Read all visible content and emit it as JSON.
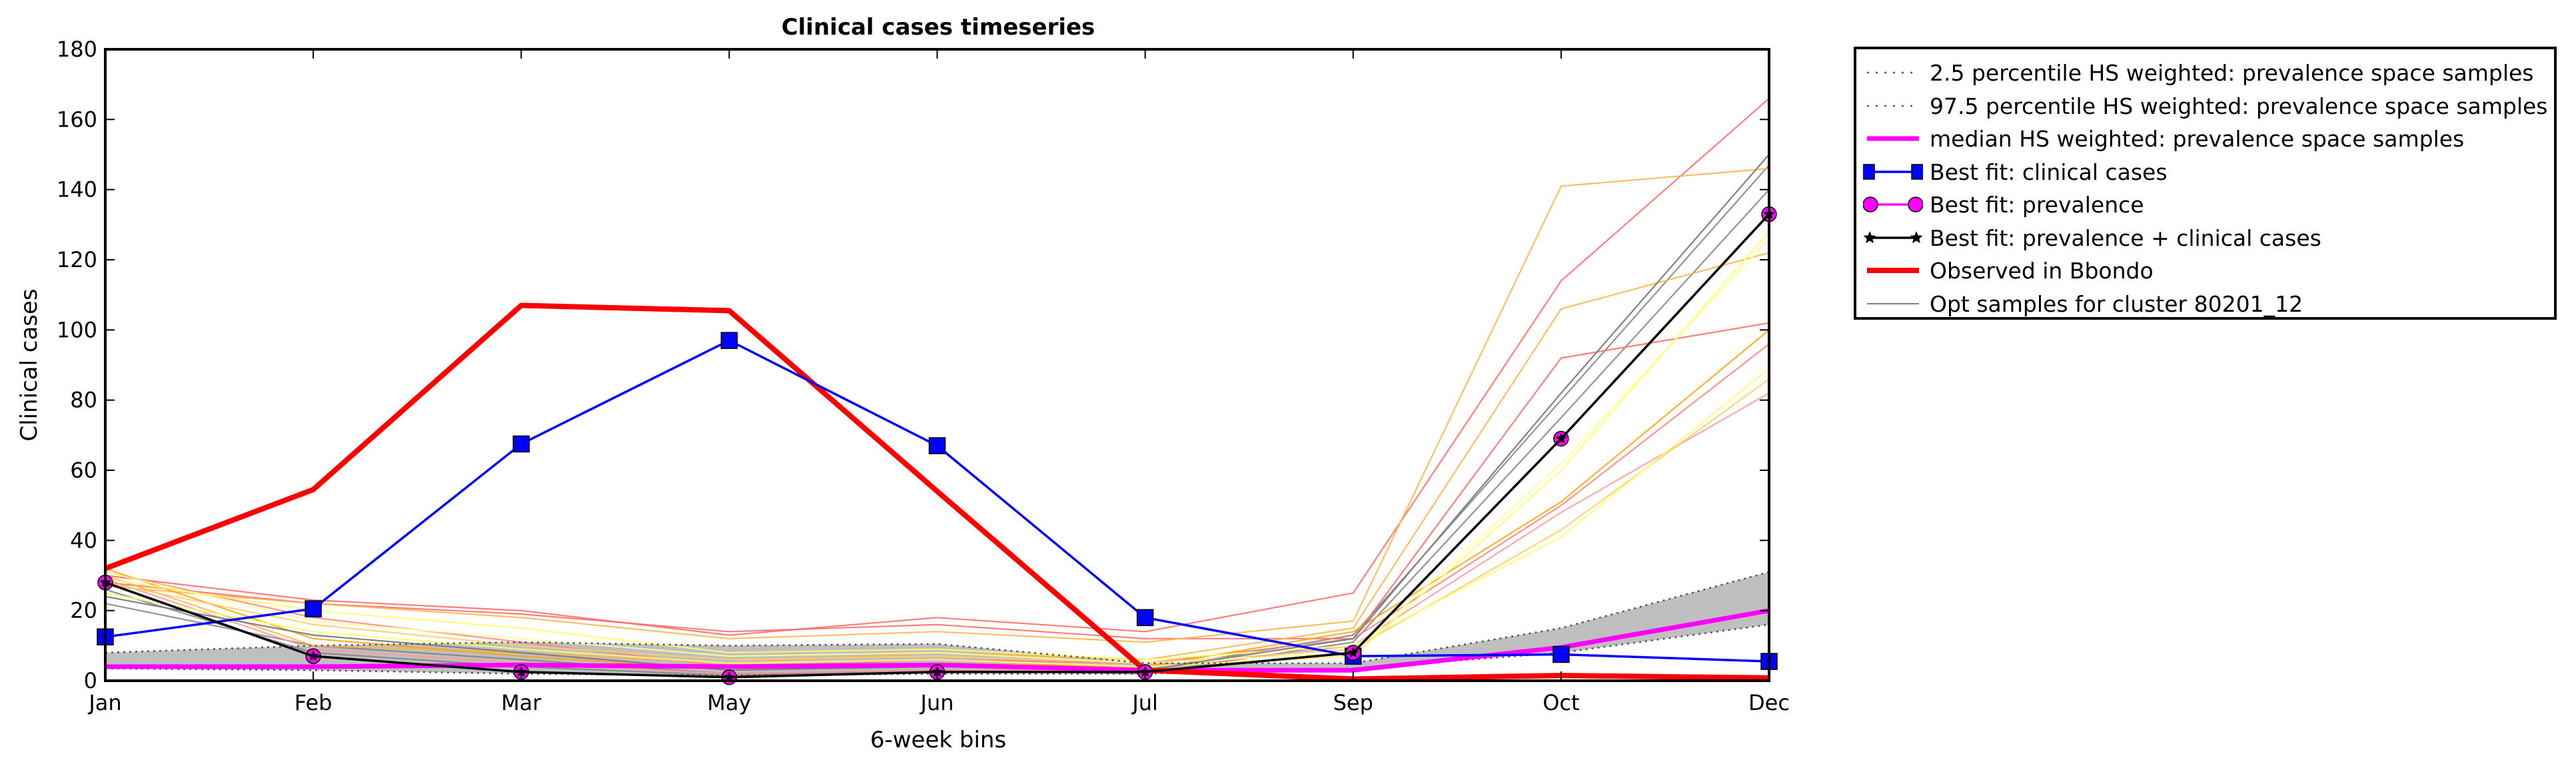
{
  "chart_data": {
    "type": "line",
    "title": "Clinical cases timeseries",
    "xlabel": "6-week bins",
    "ylabel": "Clinical cases",
    "categories": [
      "Jan",
      "Feb",
      "Mar",
      "May",
      "Jun",
      "Jul",
      "Sep",
      "Oct",
      "Dec"
    ],
    "ylim": [
      0,
      180
    ],
    "yticks": [
      0,
      20,
      40,
      60,
      80,
      100,
      120,
      140,
      160,
      180
    ],
    "grid": false,
    "legend_position": "outside top-right",
    "band": {
      "lower": [
        3.5,
        3.0,
        2.0,
        1.5,
        2.0,
        2.0,
        3.5,
        8.0,
        16.0
      ],
      "upper": [
        8.0,
        10.0,
        11.0,
        10.0,
        10.5,
        5.0,
        5.0,
        15.0,
        31.0
      ],
      "color": "#bfbfbf"
    },
    "series": [
      {
        "name": "2.5 percentile HS weighted: prevalence space samples",
        "style": "dotted",
        "color": "#555555",
        "values": [
          3.5,
          3.0,
          2.0,
          1.5,
          2.0,
          2.0,
          3.5,
          8.0,
          16.0
        ]
      },
      {
        "name": "97.5 percentile HS weighted: prevalence space samples",
        "style": "dotted",
        "color": "#555555",
        "values": [
          8.0,
          10.0,
          11.0,
          10.0,
          10.5,
          5.0,
          5.0,
          15.0,
          31.0
        ]
      },
      {
        "name": "median HS weighted: prevalence space samples",
        "style": "solid",
        "color": "#ff00ff",
        "values": [
          4.0,
          4.0,
          4.5,
          4.0,
          4.5,
          3.0,
          3.0,
          9.5,
          20.0
        ]
      },
      {
        "name": "Best fit: clinical cases",
        "style": "line-square",
        "color": "#0000ff",
        "values": [
          12.5,
          20.5,
          67.5,
          97.0,
          67.0,
          18.0,
          7.0,
          7.5,
          5.5
        ]
      },
      {
        "name": "Best fit: prevalence",
        "style": "line-circle",
        "color": "#ff00ff",
        "values": [
          28.0,
          7.0,
          2.5,
          1.0,
          2.5,
          2.5,
          8.0,
          69.0,
          133.0
        ]
      },
      {
        "name": "Best fit: prevalence + clinical cases",
        "style": "line-star",
        "color": "#000000",
        "values": [
          28.0,
          7.0,
          2.5,
          1.0,
          2.5,
          2.5,
          8.0,
          69.0,
          133.0
        ]
      },
      {
        "name": "Observed in Bbondo",
        "style": "solid-thick",
        "color": "#ff0000",
        "values": [
          32.0,
          54.5,
          107.0,
          105.5,
          54.0,
          3.0,
          0.5,
          1.5,
          0.8
        ]
      },
      {
        "name": "Opt samples for cluster 80201_12",
        "style": "thin",
        "color": "#808080",
        "values": [
          24.0,
          13.0,
          8.0,
          3.0,
          4.0,
          3.0,
          12.0,
          82.0,
          150.0
        ]
      }
    ],
    "opt_samples": [
      {
        "color": "#808080",
        "values": [
          22.0,
          10.0,
          6.0,
          2.0,
          3.0,
          3.0,
          13.0,
          80.0,
          147.0
        ]
      },
      {
        "color": "#808080",
        "values": [
          26.0,
          8.0,
          4.0,
          1.5,
          3.0,
          2.0,
          11.0,
          75.0,
          140.0
        ]
      },
      {
        "color": "#ff6666",
        "values": [
          30.0,
          23.0,
          20.0,
          13.0,
          18.0,
          14.0,
          25.0,
          114.0,
          166.0
        ]
      },
      {
        "color": "#ff6666",
        "values": [
          28.0,
          22.0,
          19.0,
          14.0,
          16.0,
          12.0,
          12.0,
          92.0,
          102.0
        ]
      },
      {
        "color": "#ff8080",
        "values": [
          31.0,
          18.0,
          11.0,
          4.0,
          6.0,
          5.0,
          12.0,
          50.0,
          96.0
        ]
      },
      {
        "color": "#ff9999",
        "values": [
          29.0,
          9.0,
          5.0,
          2.0,
          3.0,
          3.0,
          10.0,
          48.0,
          82.0
        ]
      },
      {
        "color": "#ffb347",
        "values": [
          27.0,
          22.0,
          18.0,
          12.0,
          14.0,
          11.0,
          17.0,
          141.0,
          146.0
        ]
      },
      {
        "color": "#ffb347",
        "values": [
          30.0,
          10.0,
          8.0,
          5.0,
          8.0,
          6.0,
          15.0,
          106.0,
          122.0
        ]
      },
      {
        "color": "#ffa500",
        "values": [
          32.0,
          12.0,
          7.0,
          3.0,
          5.0,
          4.0,
          14.0,
          51.0,
          100.0
        ]
      },
      {
        "color": "#ffcc66",
        "values": [
          28.0,
          16.0,
          10.0,
          6.0,
          7.0,
          5.0,
          9.0,
          43.0,
          86.0
        ]
      },
      {
        "color": "#ffff66",
        "values": [
          29.0,
          20.0,
          15.0,
          8.0,
          9.0,
          6.0,
          10.0,
          41.0,
          89.0
        ]
      },
      {
        "color": "#ffff99",
        "values": [
          31.0,
          17.0,
          12.0,
          7.0,
          8.0,
          5.0,
          8.0,
          62.0,
          126.0
        ]
      },
      {
        "color": "#ffff66",
        "values": [
          25.0,
          14.0,
          9.0,
          5.0,
          6.0,
          4.0,
          7.0,
          60.0,
          128.0
        ]
      }
    ]
  }
}
